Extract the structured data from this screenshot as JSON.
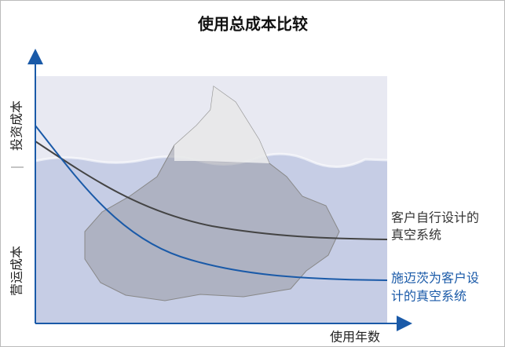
{
  "title": "使用总成本比较",
  "y_axis": {
    "upper_label": "投资成本",
    "lower_label": "营运成本"
  },
  "x_axis": {
    "label": "使用年数"
  },
  "curves": [
    {
      "label_lines": [
        "客户自行设计的",
        "真空系统"
      ]
    },
    {
      "label_lines": [
        "施迈茨为客户设",
        "计的真空系统"
      ]
    }
  ]
}
